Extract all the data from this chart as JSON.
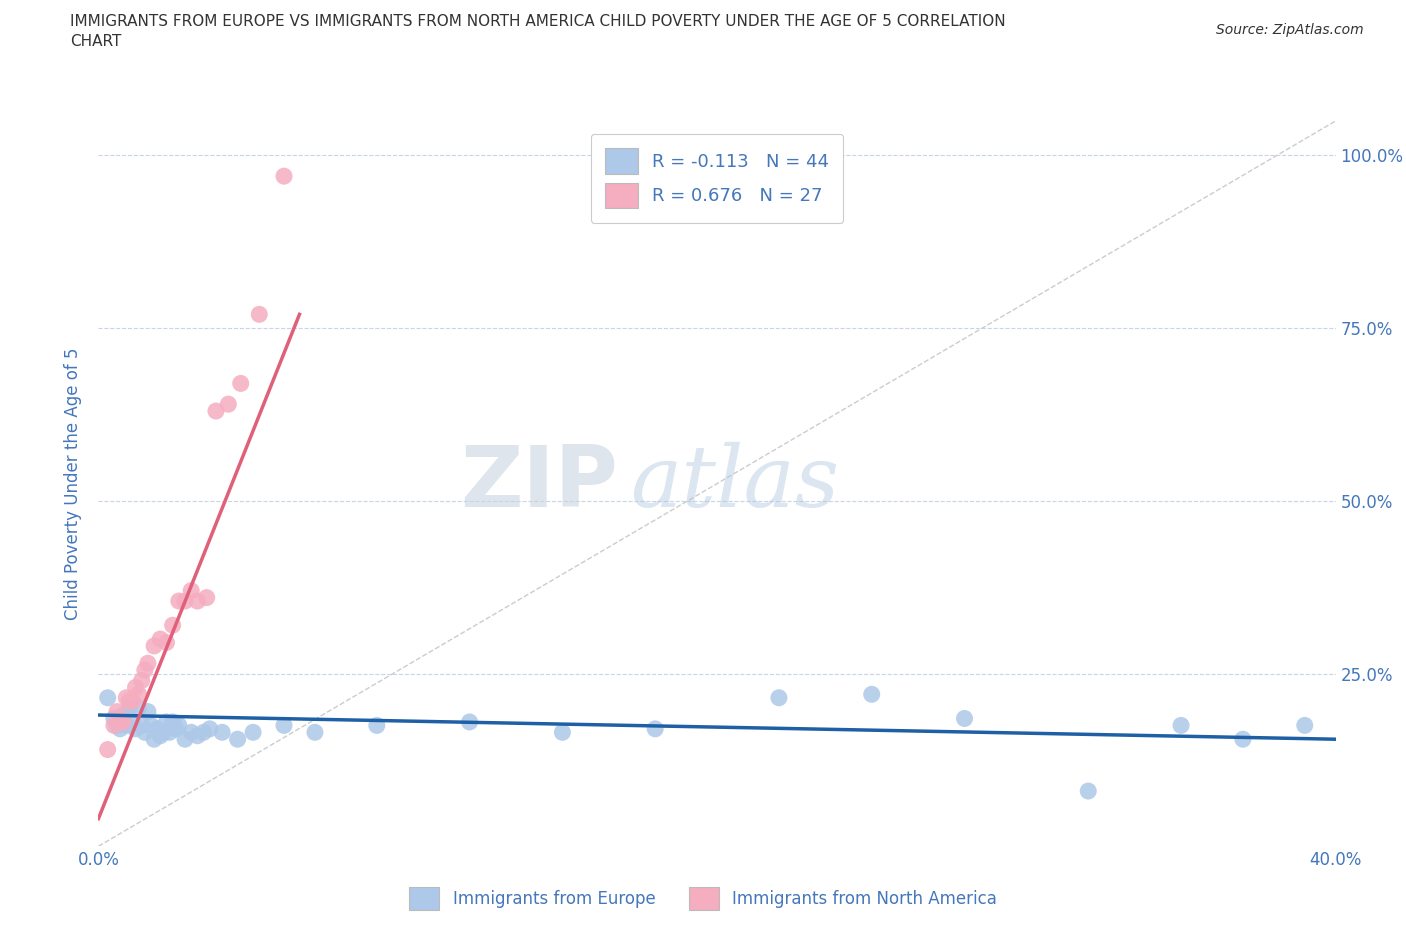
{
  "title_line1": "IMMIGRANTS FROM EUROPE VS IMMIGRANTS FROM NORTH AMERICA CHILD POVERTY UNDER THE AGE OF 5 CORRELATION",
  "title_line2": "CHART",
  "source_text": "Source: ZipAtlas.com",
  "ylabel": "Child Poverty Under the Age of 5",
  "xlim": [
    0.0,
    0.4
  ],
  "ylim": [
    0.0,
    1.05
  ],
  "xticks": [
    0.0,
    0.1,
    0.2,
    0.3,
    0.4
  ],
  "xticklabels": [
    "0.0%",
    "",
    "",
    "",
    "40.0%"
  ],
  "yticks": [
    0.0,
    0.25,
    0.5,
    0.75,
    1.0
  ],
  "yticklabels": [
    "",
    "25.0%",
    "50.0%",
    "75.0%",
    "100.0%"
  ],
  "legend_europe": "R = -0.113   N = 44",
  "legend_north_america": "R = 0.676   N = 27",
  "europe_color": "#adc8e8",
  "north_america_color": "#f5adc0",
  "europe_line_color": "#1f5fa6",
  "north_america_line_color": "#e0607a",
  "diagonal_color": "#cccccc",
  "watermark_zip": "ZIP",
  "watermark_atlas": "atlas",
  "background_color": "#ffffff",
  "grid_color": "#c8d4e8",
  "title_color": "#333333",
  "axis_label_color": "#4477bb",
  "tick_label_color": "#4477bb",
  "europe_scatter_x": [
    0.003,
    0.005,
    0.006,
    0.007,
    0.008,
    0.009,
    0.01,
    0.011,
    0.012,
    0.013,
    0.014,
    0.015,
    0.016,
    0.017,
    0.018,
    0.019,
    0.02,
    0.021,
    0.022,
    0.023,
    0.024,
    0.025,
    0.026,
    0.028,
    0.03,
    0.032,
    0.034,
    0.036,
    0.04,
    0.045,
    0.05,
    0.06,
    0.07,
    0.09,
    0.12,
    0.15,
    0.18,
    0.22,
    0.25,
    0.28,
    0.32,
    0.35,
    0.37,
    0.39
  ],
  "europe_scatter_y": [
    0.215,
    0.185,
    0.175,
    0.17,
    0.19,
    0.175,
    0.2,
    0.18,
    0.17,
    0.2,
    0.175,
    0.165,
    0.195,
    0.175,
    0.155,
    0.17,
    0.16,
    0.165,
    0.18,
    0.165,
    0.18,
    0.17,
    0.175,
    0.155,
    0.165,
    0.16,
    0.165,
    0.17,
    0.165,
    0.155,
    0.165,
    0.175,
    0.165,
    0.175,
    0.18,
    0.165,
    0.17,
    0.215,
    0.22,
    0.185,
    0.08,
    0.175,
    0.155,
    0.175
  ],
  "north_america_scatter_x": [
    0.003,
    0.005,
    0.006,
    0.007,
    0.008,
    0.009,
    0.01,
    0.011,
    0.012,
    0.013,
    0.014,
    0.015,
    0.016,
    0.018,
    0.02,
    0.022,
    0.024,
    0.026,
    0.028,
    0.03,
    0.032,
    0.035,
    0.038,
    0.042,
    0.046,
    0.052,
    0.06
  ],
  "north_america_scatter_y": [
    0.14,
    0.175,
    0.195,
    0.18,
    0.18,
    0.215,
    0.21,
    0.21,
    0.23,
    0.22,
    0.24,
    0.255,
    0.265,
    0.29,
    0.3,
    0.295,
    0.32,
    0.355,
    0.355,
    0.37,
    0.355,
    0.36,
    0.63,
    0.64,
    0.67,
    0.77,
    0.97
  ],
  "na_trend_x0": 0.0,
  "na_trend_y0": 0.04,
  "na_trend_x1": 0.065,
  "na_trend_y1": 0.77,
  "eu_trend_x0": 0.0,
  "eu_trend_y0": 0.19,
  "eu_trend_x1": 0.4,
  "eu_trend_y1": 0.155
}
